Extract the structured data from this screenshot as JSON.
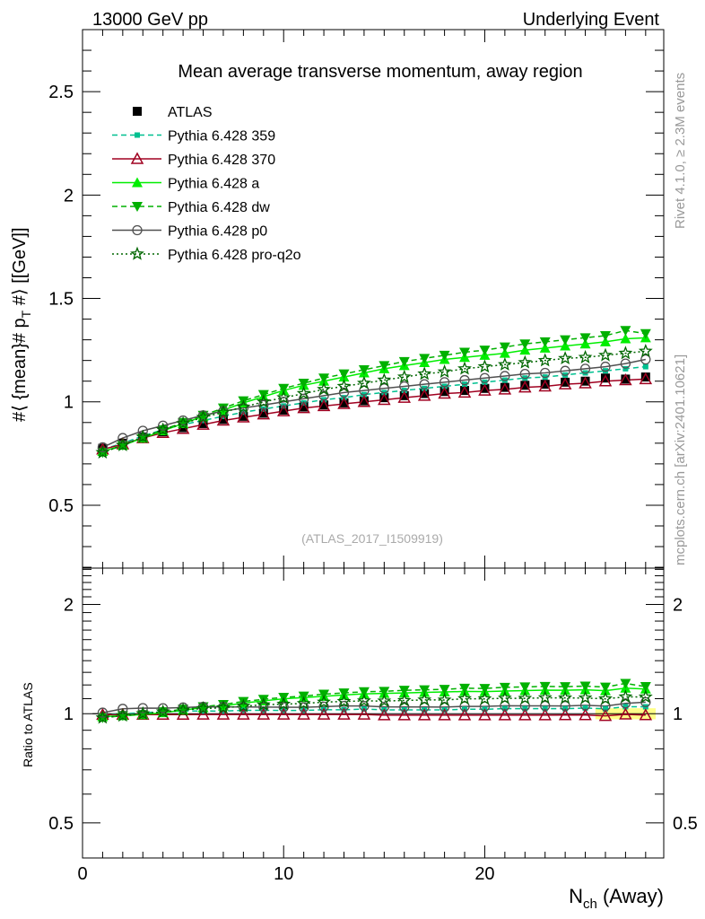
{
  "header": {
    "left": "13000 GeV pp",
    "right": "Underlying Event"
  },
  "side": {
    "rivet": "Rivet 4.1.0, ≥ 2.3M events",
    "mcplots": "mcplots.cern.ch [arXiv:2401.10621]"
  },
  "watermark": "(ATLAS_2017_I1509919)",
  "chart_data": {
    "type": "line",
    "title": "Mean average transverse momentum, away region",
    "ylabel_parts": [
      "#⟨ {mean}# p",
      "T",
      " #⟩ [[GeV]]"
    ],
    "xlabel_parts": [
      "N",
      "ch",
      " (Away)"
    ],
    "ratio_ylabel": "Ratio to ATLAS",
    "xlim": [
      0,
      28.9
    ],
    "ylim": [
      0.196,
      2.8
    ],
    "ratio_ylim": [
      0.4,
      2.52
    ],
    "xticks": [
      "0",
      "10",
      "20"
    ],
    "yticks": [
      "0.5",
      "1",
      "1.5",
      "2",
      "2.5"
    ],
    "ratio_yticks": [
      "0.5",
      "1",
      "2"
    ],
    "legend_position": "top-left",
    "x": [
      1,
      2,
      3,
      4,
      5,
      6,
      7,
      8,
      9,
      10,
      11,
      12,
      13,
      14,
      15,
      16,
      17,
      18,
      19,
      20,
      21,
      22,
      23,
      24,
      25,
      26,
      27,
      28
    ],
    "reference": {
      "name": "ATLAS",
      "color": "#000000",
      "marker": "square",
      "values": [
        0.775,
        0.8,
        0.83,
        0.855,
        0.875,
        0.895,
        0.915,
        0.93,
        0.945,
        0.96,
        0.975,
        0.985,
        0.995,
        1.005,
        1.02,
        1.03,
        1.04,
        1.05,
        1.055,
        1.065,
        1.07,
        1.08,
        1.085,
        1.095,
        1.1,
        1.115,
        1.11,
        1.12
      ]
    },
    "series": [
      {
        "name": "Pythia 6.428 359",
        "color": "#00c090",
        "dash": "dashed",
        "marker": "smallsquare",
        "values": [
          0.77,
          0.8,
          0.835,
          0.865,
          0.89,
          0.91,
          0.93,
          0.95,
          0.965,
          0.98,
          0.995,
          1.01,
          1.02,
          1.035,
          1.045,
          1.055,
          1.065,
          1.075,
          1.085,
          1.095,
          1.105,
          1.115,
          1.12,
          1.13,
          1.14,
          1.15,
          1.16,
          1.17
        ]
      },
      {
        "name": "Pythia 6.428 370",
        "color": "#a00020",
        "dash": "solid",
        "marker": "opentriangle",
        "values": [
          0.77,
          0.795,
          0.825,
          0.85,
          0.87,
          0.89,
          0.91,
          0.925,
          0.94,
          0.955,
          0.97,
          0.98,
          0.99,
          1.0,
          1.01,
          1.02,
          1.03,
          1.04,
          1.045,
          1.055,
          1.06,
          1.07,
          1.075,
          1.085,
          1.09,
          1.1,
          1.105,
          1.11
        ]
      },
      {
        "name": "Pythia 6.428 a",
        "color": "#00ee00",
        "dash": "solid",
        "marker": "triangleup",
        "values": [
          0.76,
          0.79,
          0.825,
          0.86,
          0.895,
          0.93,
          0.96,
          0.995,
          1.025,
          1.055,
          1.08,
          1.1,
          1.12,
          1.14,
          1.16,
          1.175,
          1.19,
          1.205,
          1.215,
          1.225,
          1.235,
          1.25,
          1.26,
          1.27,
          1.28,
          1.29,
          1.305,
          1.31
        ]
      },
      {
        "name": "Pythia 6.428 dw",
        "color": "#00b000",
        "dash": "dashed",
        "marker": "triangledown",
        "values": [
          0.755,
          0.79,
          0.825,
          0.865,
          0.9,
          0.935,
          0.97,
          1.005,
          1.035,
          1.065,
          1.09,
          1.115,
          1.135,
          1.155,
          1.175,
          1.195,
          1.21,
          1.225,
          1.24,
          1.25,
          1.265,
          1.28,
          1.29,
          1.3,
          1.31,
          1.32,
          1.345,
          1.33
        ]
      },
      {
        "name": "Pythia 6.428 p0",
        "color": "#505050",
        "dash": "solid",
        "marker": "opencircle",
        "values": [
          0.78,
          0.825,
          0.86,
          0.885,
          0.91,
          0.935,
          0.955,
          0.97,
          0.985,
          1.0,
          1.015,
          1.03,
          1.045,
          1.055,
          1.065,
          1.075,
          1.085,
          1.095,
          1.105,
          1.115,
          1.125,
          1.135,
          1.14,
          1.15,
          1.16,
          1.17,
          1.185,
          1.205
        ]
      },
      {
        "name": "Pythia 6.428 pro-q2o",
        "color": "#006600",
        "dash": "dotted",
        "marker": "star",
        "values": [
          0.755,
          0.79,
          0.83,
          0.865,
          0.895,
          0.925,
          0.95,
          0.975,
          1.0,
          1.02,
          1.04,
          1.06,
          1.075,
          1.09,
          1.105,
          1.12,
          1.135,
          1.145,
          1.16,
          1.17,
          1.18,
          1.19,
          1.2,
          1.21,
          1.215,
          1.225,
          1.235,
          1.245
        ]
      }
    ]
  }
}
